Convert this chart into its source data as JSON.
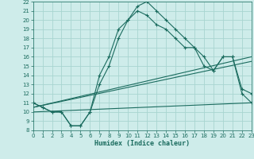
{
  "xlabel": "Humidex (Indice chaleur)",
  "xlim": [
    0,
    23
  ],
  "ylim": [
    8,
    22
  ],
  "xticks": [
    0,
    1,
    2,
    3,
    4,
    5,
    6,
    7,
    8,
    9,
    10,
    11,
    12,
    13,
    14,
    15,
    16,
    17,
    18,
    19,
    20,
    21,
    22,
    23
  ],
  "yticks": [
    8,
    9,
    10,
    11,
    12,
    13,
    14,
    15,
    16,
    17,
    18,
    19,
    20,
    21,
    22
  ],
  "bg_color": "#ceecea",
  "grid_color": "#a8d5d0",
  "line_color": "#1a6b5e",
  "curve1_x": [
    0,
    1,
    2,
    3,
    4,
    5,
    6,
    7,
    8,
    9,
    10,
    11,
    12,
    13,
    14,
    15,
    16,
    17,
    18,
    19,
    20,
    21,
    22,
    23
  ],
  "curve1_y": [
    11,
    10.5,
    10,
    10,
    8.5,
    8.5,
    10,
    14,
    16,
    19,
    20,
    21.5,
    22,
    21,
    20,
    19,
    18,
    17,
    16,
    14.5,
    16,
    16,
    12.5,
    12
  ],
  "curve2_x": [
    0,
    1,
    2,
    3,
    4,
    5,
    6,
    7,
    8,
    9,
    10,
    11,
    12,
    13,
    14,
    15,
    16,
    17,
    18,
    19,
    20,
    21,
    22,
    23
  ],
  "curve2_y": [
    11,
    10.5,
    10,
    10,
    8.5,
    8.5,
    10,
    13,
    15,
    18,
    20,
    21,
    20.5,
    19.5,
    19,
    18,
    17,
    17,
    15,
    14.5,
    16,
    16,
    12,
    11
  ],
  "curve3_x": [
    0,
    23
  ],
  "curve3_y": [
    10,
    11
  ],
  "curve4_x": [
    0,
    23
  ],
  "curve4_y": [
    10.5,
    15.5
  ],
  "curve5_x": [
    0,
    23
  ],
  "curve5_y": [
    10.5,
    16
  ],
  "marker": "+",
  "lw": 0.8,
  "ms": 3.5,
  "tick_fontsize": 5,
  "xlabel_fontsize": 6
}
